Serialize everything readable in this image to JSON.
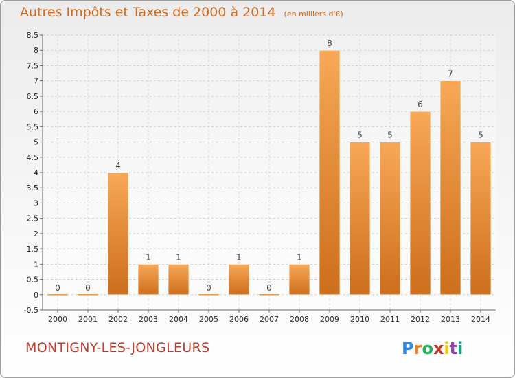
{
  "header": {
    "title": "Autres Impôts et Taxes de 2000 à 2014",
    "subtitle": "(en milliers d'€)"
  },
  "footer": {
    "commune": "MONTIGNY-LES-JONGLEURS",
    "logo": "Proxiti"
  },
  "colors": {
    "bar_top": "#f7a856",
    "bar_bottom": "#cd6e1c",
    "title": "#d2691e",
    "commune": "#c0392b"
  },
  "chart_data": {
    "type": "bar",
    "title": "Autres Impôts et Taxes de 2000 à 2014",
    "subtitle": "(en milliers d'€)",
    "categories": [
      "2000",
      "2001",
      "2002",
      "2003",
      "2004",
      "2005",
      "2006",
      "2007",
      "2008",
      "2009",
      "2010",
      "2011",
      "2012",
      "2013",
      "2014"
    ],
    "values": [
      0,
      0,
      4,
      1,
      1,
      0,
      1,
      0,
      1,
      8,
      5,
      5,
      6,
      7,
      5
    ],
    "ylim": [
      -0.5,
      8.5
    ],
    "yticks": [
      "-0.5",
      "0",
      "0.5",
      "1",
      "1.5",
      "2",
      "2.5",
      "3",
      "3.5",
      "4",
      "4.5",
      "5",
      "5.5",
      "6",
      "6.5",
      "7",
      "7.5",
      "8",
      "8.5"
    ],
    "grid": true,
    "legend": "none"
  }
}
